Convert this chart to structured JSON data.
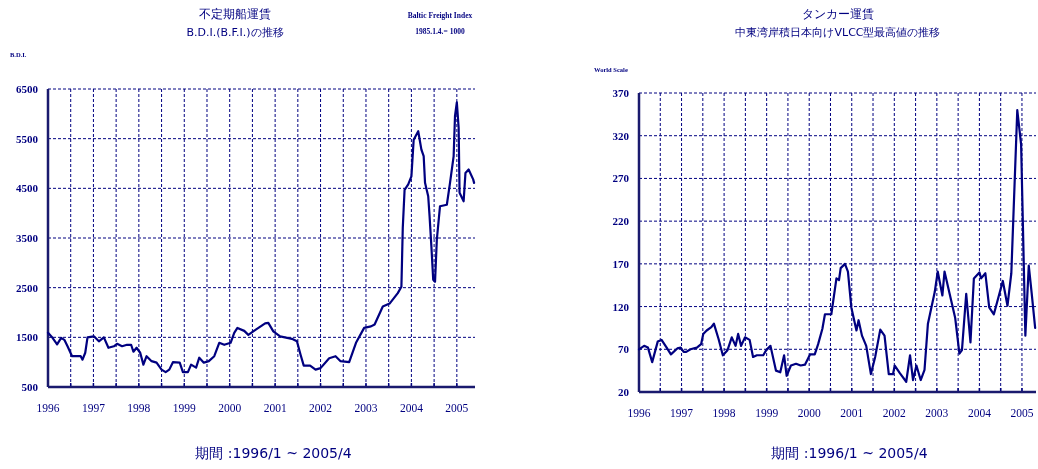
{
  "chart_data": [
    {
      "type": "line",
      "title": "不定期船運賃",
      "subtitle": "B.D.I.(B.F.I.)の推移",
      "ylabel": "B.D.I.",
      "xlabel": "期間 :1996/1 ~ 2005/4",
      "annotations": [
        "Baltic Freight Index",
        "1985.1.4.= 1000"
      ],
      "x": [
        1996.0,
        1996.1,
        1996.2,
        1996.29,
        1996.36,
        1996.43,
        1996.53,
        1996.72,
        1996.76,
        1996.82,
        1996.87,
        1997.01,
        1997.12,
        1997.23,
        1997.33,
        1997.45,
        1997.52,
        1997.63,
        1997.74,
        1997.83,
        1997.88,
        1997.95,
        1998.03,
        1998.1,
        1998.17,
        1998.28,
        1998.39,
        1998.5,
        1998.59,
        1998.67,
        1998.75,
        1998.9,
        1998.97,
        1999.08,
        1999.15,
        1999.26,
        1999.33,
        1999.43,
        1999.54,
        1999.66,
        1999.77,
        1999.88,
        2000.02,
        2000.1,
        2000.17,
        2000.32,
        2000.41,
        2000.55,
        2000.78,
        2000.85,
        2000.96,
        2001.11,
        2001.37,
        2001.48,
        2001.56,
        2001.63,
        2001.77,
        2001.89,
        2002.0,
        2002.19,
        2002.33,
        2002.44,
        2002.63,
        2002.78,
        2002.96,
        2003.11,
        2003.19,
        2003.37,
        2003.52,
        2003.7,
        2003.78,
        2003.81,
        2003.85,
        2003.93,
        2004.0,
        2004.05,
        2004.15,
        2004.22,
        2004.27,
        2004.3,
        2004.37,
        2004.4,
        2004.44,
        2004.48,
        2004.52,
        2004.56,
        2004.63,
        2004.78,
        2004.85,
        2004.93,
        2004.96,
        2005.0,
        2005.04,
        2005.06,
        2005.15,
        2005.19,
        2005.26,
        2005.36,
        2005.38
      ],
      "series": [
        {
          "color": "#000080",
          "values": [
            1590,
            1490,
            1360,
            1490,
            1450,
            1320,
            1120,
            1120,
            1050,
            1190,
            1500,
            1520,
            1420,
            1500,
            1290,
            1320,
            1370,
            1320,
            1350,
            1350,
            1210,
            1290,
            1190,
            950,
            1120,
            1020,
            990,
            850,
            800,
            850,
            1000,
            990,
            800,
            800,
            950,
            890,
            1090,
            990,
            1020,
            1120,
            1390,
            1350,
            1390,
            1590,
            1690,
            1630,
            1550,
            1640,
            1780,
            1790,
            1620,
            1520,
            1470,
            1420,
            1150,
            930,
            930,
            850,
            880,
            1080,
            1120,
            1020,
            1000,
            1390,
            1690,
            1720,
            1760,
            2120,
            2180,
            2390,
            2520,
            3700,
            4470,
            4580,
            4740,
            5480,
            5650,
            5280,
            5150,
            4610,
            4340,
            3940,
            3330,
            2660,
            2620,
            3470,
            4140,
            4170,
            4610,
            5150,
            5960,
            6230,
            5720,
            4410,
            4240,
            4810,
            4880,
            4680,
            4610
          ]
        }
      ],
      "xlim": [
        1996,
        2005.4
      ],
      "ylim": [
        500,
        6500
      ],
      "xticks": [
        1996,
        {
          "value": 1996.5,
          "label": null
        },
        1997,
        {
          "value": 1997.5,
          "label": null
        },
        1998,
        {
          "value": 1998.5,
          "label": null
        },
        1999,
        {
          "value": 1999.5,
          "label": null
        },
        2000,
        {
          "value": 2000.5,
          "label": null
        },
        2001,
        {
          "value": 2001.5,
          "label": null
        },
        2002,
        {
          "value": 2002.5,
          "label": null
        },
        2003,
        {
          "value": 2003.5,
          "label": null
        },
        2004,
        {
          "value": 2004.5,
          "label": null
        },
        2005
      ],
      "yticks": [
        500,
        1500,
        2500,
        3500,
        4500,
        5500,
        6500
      ],
      "grid": true
    },
    {
      "type": "line",
      "title": "タンカー運賃",
      "subtitle": "中東湾岸積日本向けVLCC型最高値の推移",
      "ylabel": "World Scale",
      "xlabel": "期間 :1996/1 ~ 2005/4",
      "x": [
        1996.0,
        1996.12,
        1996.21,
        1996.31,
        1996.44,
        1996.53,
        1996.65,
        1996.75,
        1996.9,
        1996.98,
        1997.05,
        1997.11,
        1997.21,
        1997.36,
        1997.46,
        1997.51,
        1997.59,
        1997.7,
        1997.76,
        1997.87,
        1997.97,
        1998.08,
        1998.18,
        1998.27,
        1998.33,
        1998.4,
        1998.49,
        1998.6,
        1998.68,
        1998.77,
        1998.92,
        1998.99,
        1999.09,
        1999.22,
        1999.32,
        1999.41,
        1999.47,
        1999.57,
        1999.69,
        1999.8,
        1999.9,
        2000.02,
        2000.13,
        2000.21,
        2000.31,
        2000.37,
        2000.52,
        2000.64,
        2000.7,
        2000.74,
        2000.84,
        2000.91,
        2000.99,
        2001.11,
        2001.16,
        2001.24,
        2001.34,
        2001.45,
        2001.55,
        2001.67,
        2001.77,
        2001.87,
        2001.97,
        2002.01,
        2002.13,
        2002.28,
        2002.37,
        2002.44,
        2002.52,
        2002.62,
        2002.71,
        2002.79,
        2002.95,
        2003.02,
        2003.13,
        2003.18,
        2003.3,
        2003.43,
        2003.53,
        2003.59,
        2003.69,
        2003.79,
        2003.87,
        2004.0,
        2004.04,
        2004.14,
        2004.23,
        2004.34,
        2004.55,
        2004.66,
        2004.75,
        2004.89,
        2004.98,
        2005.08,
        2005.16,
        2005.23,
        2005.31
      ],
      "series": [
        {
          "color": "#000080",
          "values": [
            70,
            74,
            72,
            55,
            79,
            81,
            72,
            64,
            71,
            72,
            67,
            67,
            70,
            72,
            76,
            88,
            92,
            96,
            100,
            82,
            63,
            69,
            84,
            74,
            88,
            74,
            84,
            81,
            61,
            63,
            63,
            69,
            74,
            45,
            43,
            63,
            39,
            51,
            53,
            51,
            52,
            64,
            64,
            76,
            94,
            111,
            111,
            153,
            151,
            165,
            170,
            161,
            119,
            92,
            104,
            86,
            74,
            41,
            61,
            93,
            86,
            41,
            41,
            51,
            42,
            32,
            63,
            34,
            51,
            34,
            46,
            100,
            137,
            161,
            133,
            161,
            135,
            107,
            65,
            69,
            135,
            78,
            153,
            160,
            153,
            159,
            119,
            111,
            150,
            121,
            159,
            350,
            310,
            86,
            168,
            135,
            95
          ]
        }
      ],
      "xlim": [
        1996,
        2005.33
      ],
      "ylim": [
        20,
        370
      ],
      "xticks": [
        1996,
        {
          "value": 1996.5,
          "label": null
        },
        1997,
        {
          "value": 1997.5,
          "label": null
        },
        1998,
        {
          "value": 1998.5,
          "label": null
        },
        1999,
        {
          "value": 1999.5,
          "label": null
        },
        2000,
        {
          "value": 2000.5,
          "label": null
        },
        2001,
        {
          "value": 2001.5,
          "label": null
        },
        2002,
        {
          "value": 2002.5,
          "label": null
        },
        2003,
        {
          "value": 2003.5,
          "label": null
        },
        2004,
        {
          "value": 2004.5,
          "label": null
        },
        2005
      ],
      "yticks": [
        20,
        70,
        120,
        170,
        220,
        270,
        320,
        370
      ],
      "grid": true
    }
  ]
}
